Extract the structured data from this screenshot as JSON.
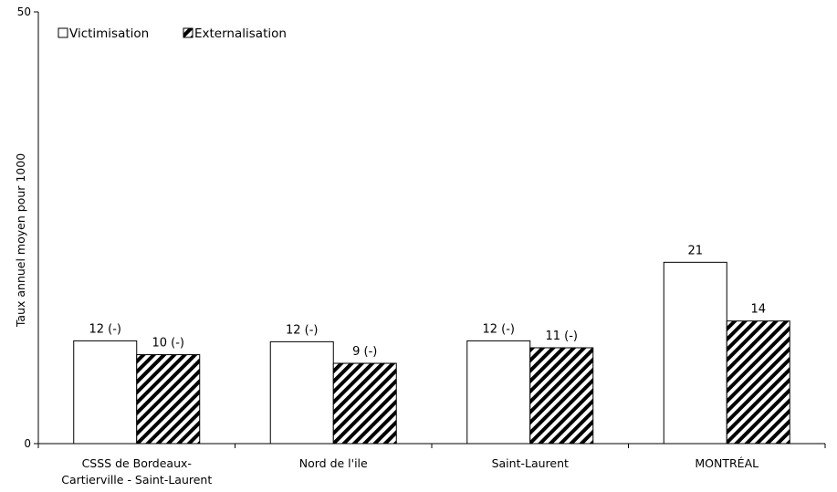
{
  "chart_data": {
    "type": "bar",
    "ylabel": "Taux annuel moyen pour 1000",
    "ylim": [
      0,
      50
    ],
    "yticks": [
      0,
      50
    ],
    "categories": [
      [
        "CSSS de Bordeaux-",
        "Cartierville - Saint-Laurent"
      ],
      [
        "Nord de l'ile"
      ],
      [
        "Saint-Laurent"
      ],
      [
        "MONTRÉAL"
      ]
    ],
    "series": [
      {
        "name": "Victimisation",
        "values": [
          11.9,
          11.8,
          11.9,
          21.0
        ],
        "labels": [
          "12 (-)",
          "12 (-)",
          "12 (-)",
          "21"
        ],
        "pattern": "solid-white"
      },
      {
        "name": "Externalisation",
        "values": [
          10.3,
          9.3,
          11.1,
          14.2
        ],
        "labels": [
          "10 (-)",
          "9 (-)",
          "11 (-)",
          "14"
        ],
        "pattern": "diagonal-hatch"
      }
    ],
    "legend_position": "top-left",
    "grid": false
  }
}
